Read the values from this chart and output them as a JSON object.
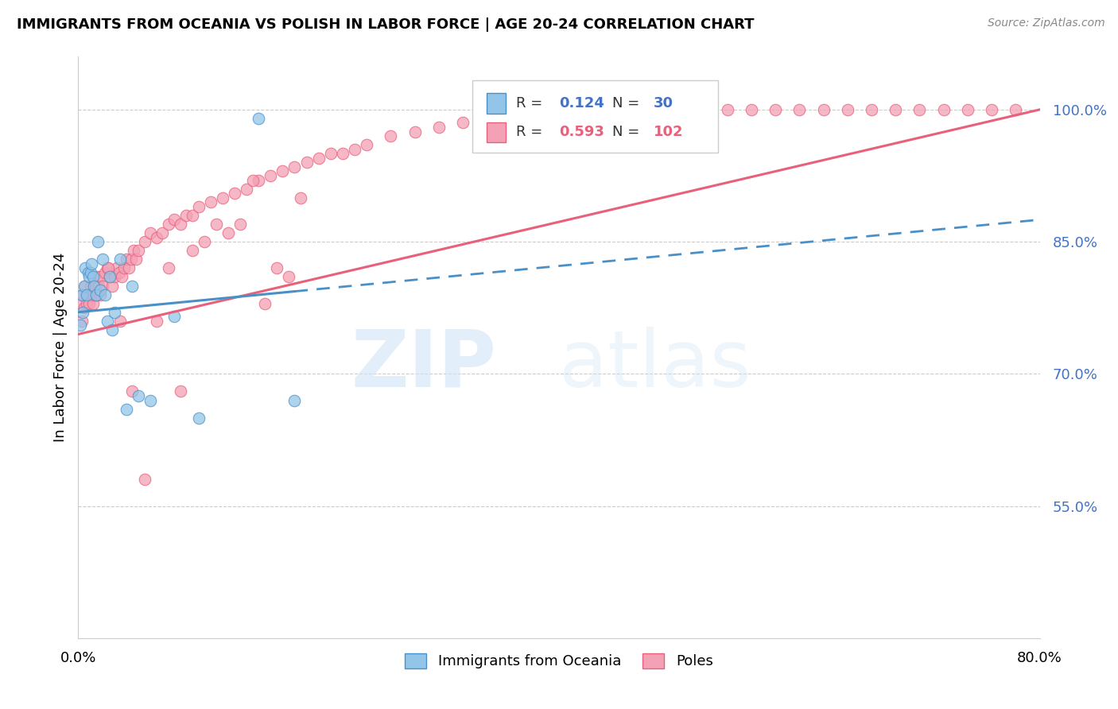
{
  "title": "IMMIGRANTS FROM OCEANIA VS POLISH IN LABOR FORCE | AGE 20-24 CORRELATION CHART",
  "source": "Source: ZipAtlas.com",
  "ylabel": "In Labor Force | Age 20-24",
  "xmin": 0.0,
  "xmax": 0.8,
  "ymin": 0.4,
  "ymax": 1.06,
  "yticks": [
    0.55,
    0.7,
    0.85,
    1.0
  ],
  "ytick_labels": [
    "55.0%",
    "70.0%",
    "85.0%",
    "100.0%"
  ],
  "color_oceania": "#92C5E8",
  "color_poles": "#F4A0B5",
  "line_color_oceania": "#4A90C8",
  "line_color_poles": "#E8607A",
  "watermark_zip": "ZIP",
  "watermark_atlas": "atlas",
  "watermark_color": "#C8D8F0",
  "oceania_x": [
    0.002,
    0.003,
    0.004,
    0.005,
    0.006,
    0.007,
    0.008,
    0.009,
    0.01,
    0.011,
    0.012,
    0.013,
    0.015,
    0.016,
    0.018,
    0.02,
    0.022,
    0.024,
    0.026,
    0.028,
    0.03,
    0.035,
    0.04,
    0.045,
    0.05,
    0.06,
    0.08,
    0.1,
    0.15,
    0.18
  ],
  "oceania_y": [
    0.755,
    0.79,
    0.77,
    0.8,
    0.82,
    0.79,
    0.815,
    0.81,
    0.815,
    0.825,
    0.81,
    0.8,
    0.79,
    0.85,
    0.795,
    0.83,
    0.79,
    0.76,
    0.81,
    0.75,
    0.77,
    0.83,
    0.66,
    0.8,
    0.675,
    0.67,
    0.765,
    0.65,
    0.99,
    0.67
  ],
  "poles_x": [
    0.002,
    0.003,
    0.004,
    0.005,
    0.006,
    0.007,
    0.008,
    0.009,
    0.01,
    0.011,
    0.012,
    0.013,
    0.014,
    0.015,
    0.016,
    0.017,
    0.018,
    0.019,
    0.02,
    0.022,
    0.024,
    0.026,
    0.028,
    0.03,
    0.032,
    0.034,
    0.036,
    0.038,
    0.04,
    0.042,
    0.044,
    0.046,
    0.048,
    0.05,
    0.055,
    0.06,
    0.065,
    0.07,
    0.075,
    0.08,
    0.085,
    0.09,
    0.095,
    0.1,
    0.11,
    0.12,
    0.13,
    0.14,
    0.15,
    0.16,
    0.17,
    0.18,
    0.19,
    0.2,
    0.21,
    0.22,
    0.23,
    0.24,
    0.26,
    0.28,
    0.3,
    0.32,
    0.34,
    0.36,
    0.38,
    0.4,
    0.42,
    0.44,
    0.46,
    0.48,
    0.5,
    0.52,
    0.54,
    0.56,
    0.58,
    0.6,
    0.62,
    0.64,
    0.66,
    0.68,
    0.7,
    0.72,
    0.74,
    0.76,
    0.78,
    0.025,
    0.035,
    0.045,
    0.055,
    0.065,
    0.075,
    0.085,
    0.095,
    0.105,
    0.115,
    0.125,
    0.135,
    0.145,
    0.155,
    0.165,
    0.175,
    0.185
  ],
  "poles_y": [
    0.78,
    0.76,
    0.79,
    0.775,
    0.8,
    0.78,
    0.79,
    0.78,
    0.8,
    0.79,
    0.78,
    0.79,
    0.8,
    0.79,
    0.81,
    0.8,
    0.79,
    0.81,
    0.8,
    0.815,
    0.82,
    0.81,
    0.8,
    0.81,
    0.82,
    0.815,
    0.81,
    0.82,
    0.83,
    0.82,
    0.83,
    0.84,
    0.83,
    0.84,
    0.85,
    0.86,
    0.855,
    0.86,
    0.87,
    0.875,
    0.87,
    0.88,
    0.88,
    0.89,
    0.895,
    0.9,
    0.905,
    0.91,
    0.92,
    0.925,
    0.93,
    0.935,
    0.94,
    0.945,
    0.95,
    0.95,
    0.955,
    0.96,
    0.97,
    0.975,
    0.98,
    0.985,
    0.99,
    0.995,
    0.995,
    1.0,
    1.0,
    1.0,
    1.0,
    1.0,
    1.0,
    1.0,
    1.0,
    1.0,
    1.0,
    1.0,
    1.0,
    1.0,
    1.0,
    1.0,
    1.0,
    1.0,
    1.0,
    1.0,
    1.0,
    0.82,
    0.76,
    0.68,
    0.58,
    0.76,
    0.82,
    0.68,
    0.84,
    0.85,
    0.87,
    0.86,
    0.87,
    0.92,
    0.78,
    0.82,
    0.81,
    0.9
  ],
  "oceania_line_x0": 0.0,
  "oceania_line_x1": 0.8,
  "oceania_line_y0": 0.77,
  "oceania_line_y1": 0.875,
  "poles_line_x0": 0.0,
  "poles_line_x1": 0.8,
  "poles_line_y0": 0.745,
  "poles_line_y1": 1.0
}
